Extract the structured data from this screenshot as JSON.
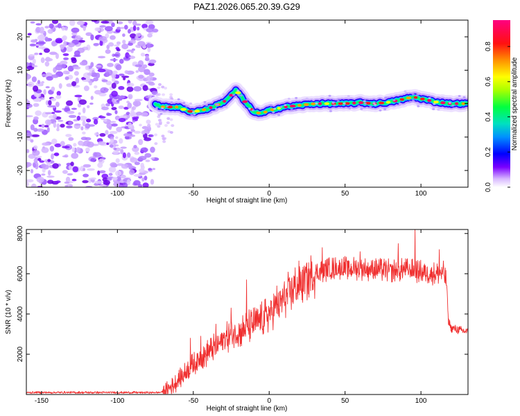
{
  "figure_title": "PAZ1.2026.065.20.39.G29",
  "chart_data": [
    {
      "type": "heatmap",
      "title": "PAZ1.2026.065.20.39.G29",
      "xlabel": "Height of straight line (km)",
      "ylabel": "Frequency (Hz)",
      "xlim": [
        -160,
        131
      ],
      "ylim": [
        -25,
        25
      ],
      "x_ticks": [
        -150,
        -100,
        -50,
        0,
        50,
        100
      ],
      "y_ticks": [
        -20,
        -10,
        0,
        10,
        20
      ],
      "noise_region_x": [
        -160,
        -75
      ],
      "signal_start_x": -75,
      "ridge": {
        "x": [
          -75,
          -70,
          -60,
          -55,
          -50,
          -45,
          -40,
          -35,
          -30,
          -25,
          -22,
          -20,
          -15,
          -10,
          -5,
          0,
          5,
          10,
          20,
          30,
          40,
          50,
          60,
          70,
          80,
          90,
          95,
          100,
          110,
          120,
          131
        ],
        "y": [
          0,
          -1,
          -1,
          -2,
          -2.5,
          -2,
          -1.5,
          -0.5,
          0.5,
          2.5,
          4,
          3,
          0,
          -2.5,
          -3,
          -2,
          -1.5,
          -1,
          -0.5,
          0,
          0,
          0,
          0.3,
          0,
          0.5,
          1.5,
          2,
          1.5,
          0.5,
          0,
          0
        ]
      },
      "colorbar": {
        "label": "Normalized spectral amplitude",
        "range": [
          0,
          0.95
        ],
        "ticks": [
          "0.0",
          "0.2",
          "0.4",
          "0.6",
          "0.8"
        ],
        "colors": [
          "#ffffff",
          "#7a00ff",
          "#0000ff",
          "#00a0ff",
          "#00e0c0",
          "#00ff00",
          "#c8ff00",
          "#ffff00",
          "#ff8000",
          "#ff0000",
          "#ff0080"
        ]
      }
    },
    {
      "type": "line",
      "xlabel": "Height of straight line (km)",
      "ylabel": "SNR (10 * v/v)",
      "xlim": [
        -160,
        131
      ],
      "ylim": [
        0,
        8200
      ],
      "x_ticks": [
        -150,
        -100,
        -50,
        0,
        50,
        100
      ],
      "y_ticks": [
        2000,
        4000,
        6000,
        8000
      ],
      "line_color": "#f03030",
      "series": [
        {
          "name": "SNR",
          "x": [
            -160,
            -150,
            -140,
            -130,
            -120,
            -110,
            -100,
            -90,
            -80,
            -72,
            -68,
            -64,
            -60,
            -55,
            -50,
            -45,
            -40,
            -35,
            -30,
            -25,
            -20,
            -15,
            -10,
            -5,
            0,
            5,
            10,
            15,
            20,
            25,
            30,
            35,
            40,
            50,
            60,
            70,
            80,
            90,
            100,
            110,
            115,
            117,
            118,
            120,
            125,
            131
          ],
          "values": [
            100,
            100,
            100,
            100,
            100,
            100,
            100,
            100,
            100,
            100,
            200,
            400,
            700,
            1100,
            1500,
            1800,
            2100,
            2400,
            2700,
            3000,
            3100,
            3300,
            3500,
            3700,
            4000,
            4400,
            4800,
            5200,
            5500,
            5800,
            6000,
            6150,
            6250,
            6300,
            6250,
            6200,
            6150,
            6200,
            6100,
            6000,
            6050,
            5500,
            3700,
            3300,
            3200,
            3100
          ]
        }
      ],
      "peaks": {
        "x": [
          -52,
          -45,
          -35,
          -25,
          -15,
          5,
          35,
          60,
          85,
          96,
          112
        ],
        "values": [
          2800,
          2900,
          3500,
          4300,
          5700,
          5400,
          7300,
          7100,
          7500,
          8200,
          7200
        ]
      }
    }
  ]
}
